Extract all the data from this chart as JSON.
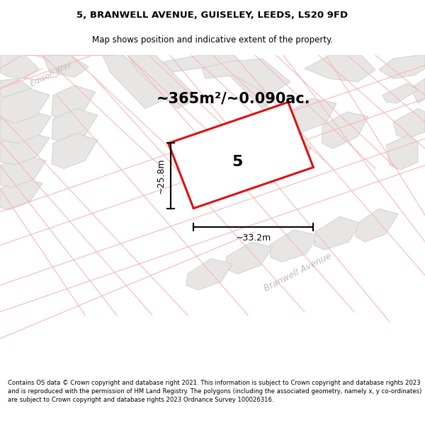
{
  "title": "5, BRANWELL AVENUE, GUISELEY, LEEDS, LS20 9FD",
  "subtitle": "Map shows position and indicative extent of the property.",
  "area_label": "~365m²/~0.090ac.",
  "width_label": "~33.2m",
  "height_label": "~25.8m",
  "number_label": "5",
  "footer": "Contains OS data © Crown copyright and database right 2021. This information is subject to Crown copyright and database rights 2023 and is reproduced with the permission of HM Land Registry. The polygons (including the associated geometry, namely x, y co-ordinates) are subject to Crown copyright and database rights 2023 Ordnance Survey 100026316.",
  "map_bg": "#ffffff",
  "block_color": "#e8e6e4",
  "block_edge": "#cccccc",
  "red_line_color": "#dd1111",
  "pink_line": "#f5b8b8",
  "street_label": "Branwell Avenue",
  "street2_label": "Edison Way",
  "title_fontsize": 9.5,
  "subtitle_fontsize": 8.5,
  "area_fontsize": 15,
  "measure_fontsize": 9,
  "street_fontsize": 9
}
